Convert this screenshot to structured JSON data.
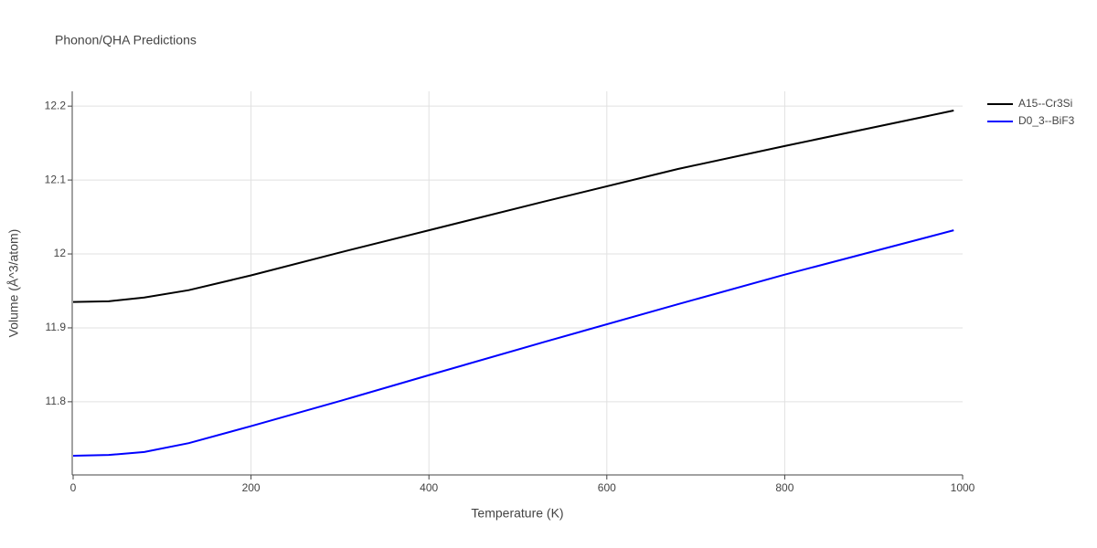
{
  "chart_data": {
    "type": "line",
    "title": "Phonon/QHA Predictions",
    "x_label": "Temperature (K)",
    "y_label": "Volume (Å^3/atom)",
    "x": [
      0,
      40,
      80,
      130,
      200,
      300,
      400,
      530,
      680,
      800,
      990
    ],
    "series": [
      {
        "name": "A15--Cr3Si",
        "color": "#000000",
        "values": [
          11.935,
          11.936,
          11.941,
          11.951,
          11.971,
          12.002,
          12.032,
          12.071,
          12.115,
          12.146,
          12.194
        ]
      },
      {
        "name": "D0_3--BiF3",
        "color": "#0000ff",
        "values": [
          11.727,
          11.728,
          11.732,
          11.744,
          11.767,
          11.801,
          11.836,
          11.881,
          11.932,
          11.972,
          12.032
        ]
      }
    ],
    "xlim": [
      0,
      1000
    ],
    "xticks": [
      0,
      200,
      400,
      600,
      800,
      1000
    ],
    "ylim": [
      11.701,
      12.22
    ],
    "yticks": [
      11.8,
      11.9,
      12,
      12.1,
      12.2
    ],
    "grid": true,
    "legend": "right"
  }
}
